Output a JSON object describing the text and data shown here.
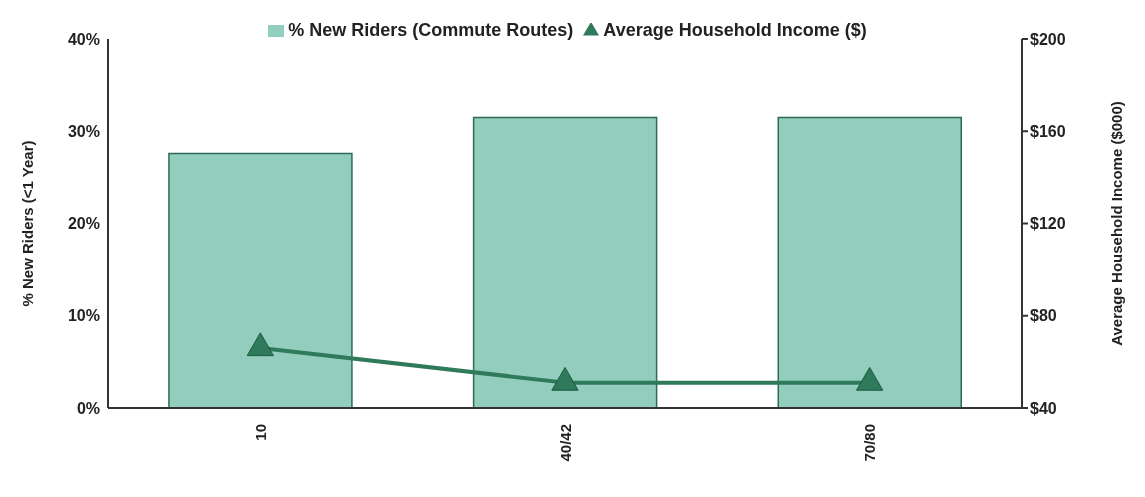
{
  "chart_data": {
    "type": "bar",
    "categories": [
      "10",
      "40/42",
      "70/80"
    ],
    "series": [
      {
        "name": "% New Riders (Commute Routes)",
        "color": "#93cdbd",
        "values": [
          27.6,
          31.5,
          31.5
        ]
      },
      {
        "name": "Average Household Income ($)",
        "type": "line",
        "axis": "y2",
        "color": "#2f7a5a",
        "values": [
          66,
          51,
          51
        ]
      }
    ],
    "ylabel": "% New Riders (<1 Year)",
    "y2label": "Average Household Income ($000)",
    "ylim": [
      0,
      40
    ],
    "yticks": [
      {
        "value": 0,
        "label": "0%"
      },
      {
        "value": 10,
        "label": "10%"
      },
      {
        "value": 20,
        "label": "20%"
      },
      {
        "value": 30,
        "label": "30%"
      },
      {
        "value": 40,
        "label": "40%"
      }
    ],
    "y2lim": [
      40,
      200
    ],
    "y2ticks": [
      {
        "value": 40,
        "label": "$40"
      },
      {
        "value": 80,
        "label": "$80"
      },
      {
        "value": 120,
        "label": "$120"
      },
      {
        "value": 160,
        "label": "$160"
      },
      {
        "value": 200,
        "label": "$200"
      }
    ],
    "legend": "top",
    "grid": false,
    "marker": "triangle",
    "line_style": "solid"
  }
}
